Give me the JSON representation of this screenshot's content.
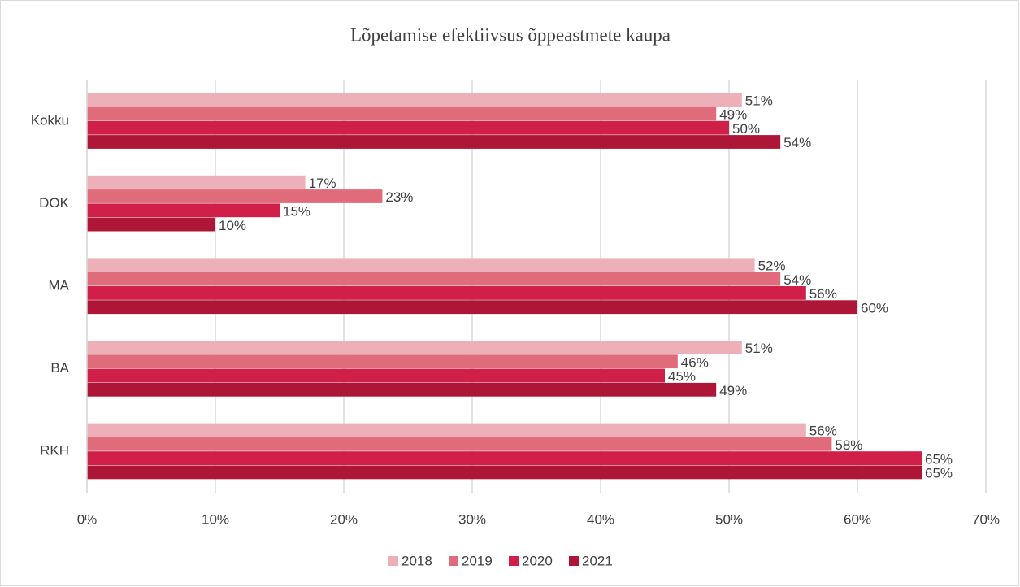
{
  "chart_data": {
    "type": "hbar",
    "title": "Lõpetamise efektiivsus õppeastmete kaupa",
    "categories": [
      "Kokku",
      "DOK",
      "MA",
      "BA",
      "RKH"
    ],
    "series": [
      {
        "name": "2018",
        "color": "#eeb0b8",
        "values": [
          51,
          17,
          52,
          51,
          56
        ],
        "value_labels": [
          "51%",
          "17%",
          "52%",
          "51%",
          "56%"
        ]
      },
      {
        "name": "2019",
        "color": "#e06c7b",
        "values": [
          49,
          23,
          54,
          46,
          58
        ],
        "value_labels": [
          "49%",
          "23%",
          "54%",
          "46%",
          "58%"
        ]
      },
      {
        "name": "2020",
        "color": "#d01f48",
        "values": [
          50,
          15,
          56,
          45,
          65
        ],
        "value_labels": [
          "50%",
          "15%",
          "56%",
          "45%",
          "65%"
        ]
      },
      {
        "name": "2021",
        "color": "#ae1638",
        "values": [
          54,
          10,
          60,
          49,
          65
        ],
        "value_labels": [
          "54%",
          "10%",
          "60%",
          "49%",
          "65%"
        ]
      }
    ],
    "xlim": [
      0,
      70
    ],
    "xticks": [
      {
        "value": 0,
        "label": "0%"
      },
      {
        "value": 10,
        "label": "10%"
      },
      {
        "value": 20,
        "label": "20%"
      },
      {
        "value": 30,
        "label": "30%"
      },
      {
        "value": 40,
        "label": "40%"
      },
      {
        "value": 50,
        "label": "50%"
      },
      {
        "value": 60,
        "label": "60%"
      },
      {
        "value": 70,
        "label": "70%"
      }
    ],
    "grid": true,
    "legend": "bottom"
  }
}
